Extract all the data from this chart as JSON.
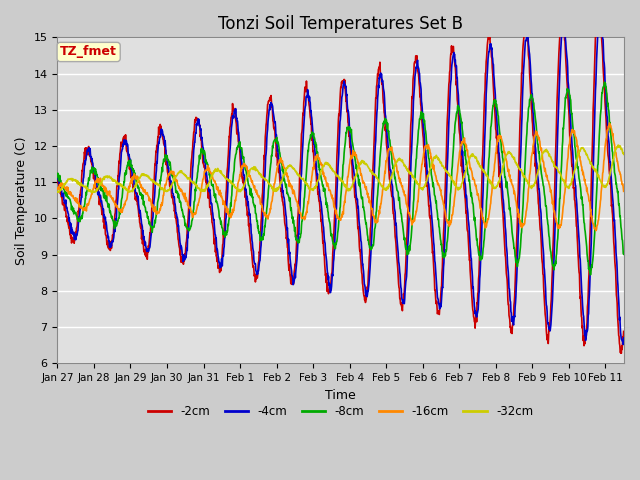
{
  "title": "Tonzi Soil Temperatures Set B",
  "xlabel": "Time",
  "ylabel": "Soil Temperature (C)",
  "ylim": [
    6.0,
    15.0
  ],
  "yticks": [
    6.0,
    7.0,
    8.0,
    9.0,
    10.0,
    11.0,
    12.0,
    13.0,
    14.0,
    15.0
  ],
  "series_labels": [
    "-2cm",
    "-4cm",
    "-8cm",
    "-16cm",
    "-32cm"
  ],
  "series_colors": [
    "#cc0000",
    "#0000cc",
    "#00aa00",
    "#ff8800",
    "#cccc00"
  ],
  "line_width": 1.2,
  "annotation_text": "TZ_fmet",
  "annotation_color": "#cc0000",
  "annotation_bg": "#ffffcc",
  "end_day": 15.5,
  "title_fontsize": 12,
  "label_fontsize": 9,
  "tick_fontsize": 8
}
